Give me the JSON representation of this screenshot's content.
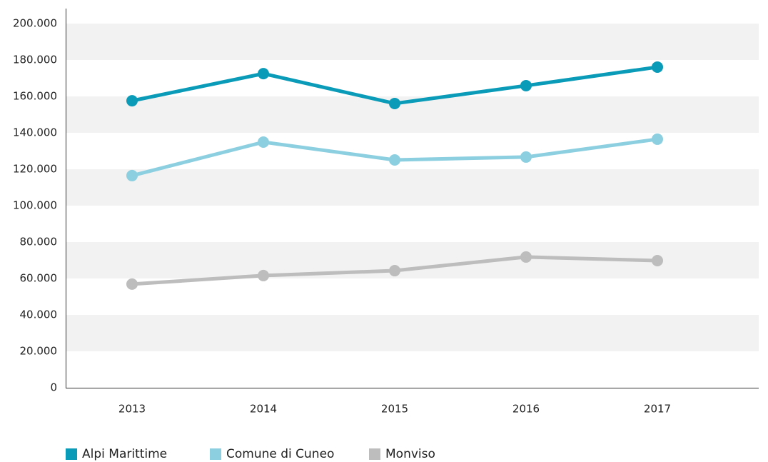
{
  "chart_data": {
    "type": "line",
    "categories": [
      "2013",
      "2014",
      "2015",
      "2016",
      "2017"
    ],
    "series": [
      {
        "name": "Alpi Marittime",
        "color": "#0a9bb8",
        "values": [
          157600,
          172500,
          156100,
          165900,
          176100
        ]
      },
      {
        "name": "Comune di Cuneo",
        "color": "#8ccfe0",
        "values": [
          116500,
          134900,
          125100,
          126700,
          136500
        ]
      },
      {
        "name": "Monviso",
        "color": "#bdbdbd",
        "values": [
          56900,
          61600,
          64300,
          71800,
          69800
        ]
      }
    ],
    "ylim": [
      0,
      200000
    ],
    "yticks": [
      0,
      {
        "value": 20000,
        "label": "20.000"
      },
      {
        "value": 40000,
        "label": "40.000"
      },
      {
        "value": 60000,
        "label": "60.000"
      },
      {
        "value": 80000,
        "label": "80.000"
      },
      {
        "value": 100000,
        "label": "100.000"
      },
      {
        "value": 120000,
        "label": "120.000"
      },
      {
        "value": 140000,
        "label": "140.000"
      },
      {
        "value": 160000,
        "label": "160.000"
      },
      {
        "value": 180000,
        "label": "180.000"
      },
      {
        "value": 200000,
        "label": "200.000"
      }
    ],
    "grid": true,
    "legend": "bottom-left"
  }
}
